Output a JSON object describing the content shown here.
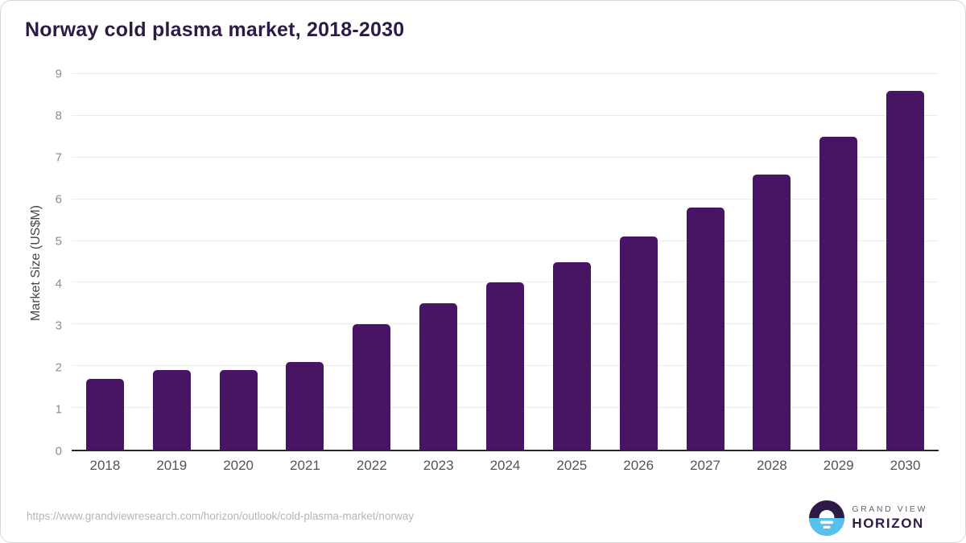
{
  "page": {
    "title": "Norway cold plasma market, 2018-2030",
    "source_url": "https://www.grandviewresearch.com/horizon/outlook/cold-plasma-market/norway"
  },
  "chart_data": {
    "type": "bar",
    "title": "Norway cold plasma market, 2018-2030",
    "categories": [
      "2018",
      "2019",
      "2020",
      "2021",
      "2022",
      "2023",
      "2024",
      "2025",
      "2026",
      "2027",
      "2028",
      "2029",
      "2030"
    ],
    "values": [
      1.7,
      1.9,
      1.9,
      2.1,
      3.0,
      3.5,
      4.0,
      4.5,
      5.1,
      5.8,
      6.6,
      7.5,
      8.6
    ],
    "xlabel": "",
    "ylabel": "Market Size (US$M)",
    "ylim": [
      0,
      9
    ],
    "yticks": [
      0,
      1,
      2,
      3,
      4,
      5,
      6,
      7,
      8,
      9
    ],
    "grid": true,
    "legend": false,
    "bar_color": "#481463"
  },
  "branding": {
    "logo_icon": "horizon-sunrise-icon",
    "logo_line1": "GRAND VIEW",
    "logo_line2": "HORIZON",
    "colors": {
      "logo_blue": "#56c1ea",
      "logo_dark": "#2e1a47"
    }
  },
  "colors": {
    "title_text": "#2e1a47",
    "bar_fill": "#481463",
    "gridline": "#ebebee",
    "axis_line": "#26262e",
    "tick_text": "#8c8c8c",
    "x_label_text": "#545454",
    "url_text": "#b5b5b5"
  }
}
